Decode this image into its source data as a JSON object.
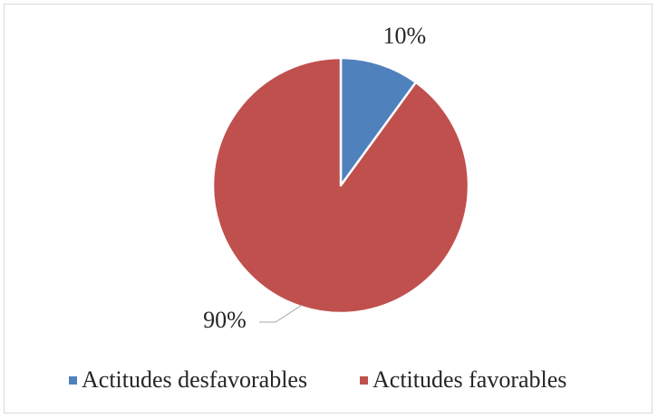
{
  "chart_data": {
    "type": "pie",
    "title": "",
    "start_angle_deg": 0,
    "direction": "clockwise",
    "legend_position": "bottom",
    "slices": [
      {
        "name": "Actitudes desfavorables",
        "value": 10,
        "label": "10%",
        "color": "#4f81bd"
      },
      {
        "name": "Actitudes favorables",
        "value": 90,
        "label": "90%",
        "color": "#c0504d"
      }
    ]
  }
}
